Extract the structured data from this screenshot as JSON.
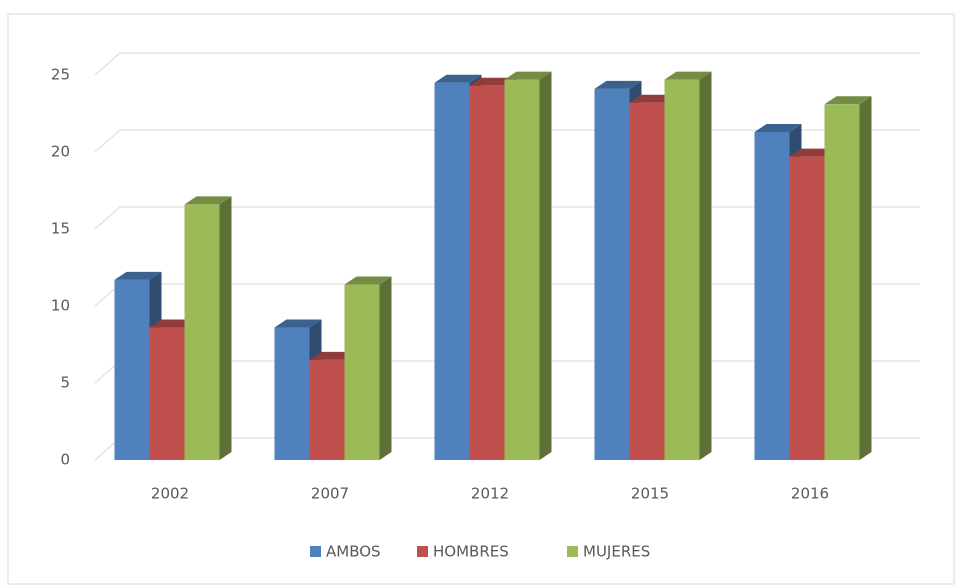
{
  "chart_data": {
    "type": "bar3d",
    "categories": [
      "2002",
      "2007",
      "2012",
      "2015",
      "2016"
    ],
    "series": [
      {
        "name": "AMBOS",
        "color": "#4f81bd",
        "values": [
          11.7,
          8.6,
          24.5,
          24.1,
          21.3
        ]
      },
      {
        "name": "HOMBRES",
        "color": "#c0504d",
        "values": [
          8.6,
          6.5,
          24.3,
          23.2,
          19.7
        ]
      },
      {
        "name": "MUJERES",
        "color": "#9bbb59",
        "values": [
          16.6,
          11.4,
          24.7,
          24.7,
          23.1
        ]
      }
    ],
    "ylim": [
      0,
      25
    ],
    "yticks": [
      0,
      5,
      10,
      15,
      20,
      25
    ],
    "grid": true,
    "legend": "bottom"
  }
}
